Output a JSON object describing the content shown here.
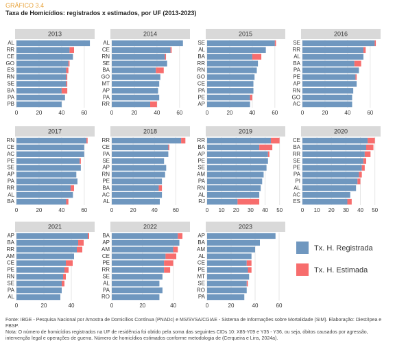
{
  "header": {
    "label": "GRÁFICO 3.4",
    "title": "Taxa de Homicídios: registrados x estimados, por UF (2013-2023)"
  },
  "chart_data": [
    {
      "type": "bar",
      "title": "2013",
      "categories": [
        "AL",
        "RR",
        "CE",
        "GO",
        "ES",
        "RN",
        "SE",
        "BA",
        "PA",
        "PB"
      ],
      "series": [
        {
          "name": "Tx. H. Registrada",
          "color": "#6f97bf",
          "values": [
            65,
            47,
            50,
            46,
            44,
            44,
            44,
            40,
            43,
            40
          ]
        },
        {
          "name": "Tx. H. Estimada",
          "color": "#f76d6d",
          "values": [
            0,
            4,
            0,
            1,
            2,
            1,
            1,
            5,
            0,
            0
          ]
        }
      ],
      "xlim": [
        0,
        68
      ],
      "xticks": [
        0,
        20,
        40,
        60
      ]
    },
    {
      "type": "bar",
      "title": "2014",
      "categories": [
        "AL",
        "CE",
        "RN",
        "SE",
        "BA",
        "GO",
        "MT",
        "AP",
        "PA",
        "RR"
      ],
      "series": [
        {
          "name": "Tx. H. Registrada",
          "color": "#6f97bf",
          "values": [
            63,
            52,
            47,
            49,
            39,
            43,
            42,
            41,
            42,
            34
          ]
        },
        {
          "name": "Tx. H. Estimada",
          "color": "#f76d6d",
          "values": [
            0,
            1,
            1,
            0,
            7,
            0,
            0,
            0,
            0,
            6
          ]
        }
      ],
      "xlim": [
        0,
        68
      ],
      "xticks": [
        0,
        20,
        40,
        60
      ]
    },
    {
      "type": "bar",
      "title": "2015",
      "categories": [
        "SE",
        "AL",
        "BA",
        "RR",
        "RN",
        "GO",
        "CE",
        "PA",
        "PE",
        "AP"
      ],
      "series": [
        {
          "name": "Tx. H. Registrada",
          "color": "#6f97bf",
          "values": [
            60,
            52,
            40,
            45,
            44,
            42,
            41,
            41,
            38,
            38
          ]
        },
        {
          "name": "Tx. H. Estimada",
          "color": "#f76d6d",
          "values": [
            1,
            0,
            8,
            0,
            0,
            0,
            0,
            0,
            2,
            0
          ]
        }
      ],
      "xlim": [
        0,
        68
      ],
      "xticks": [
        0,
        20,
        40,
        60
      ]
    },
    {
      "type": "bar",
      "title": "2016",
      "categories": [
        "SE",
        "RR",
        "AL",
        "BA",
        "PA",
        "PE",
        "AP",
        "RN",
        "GO",
        "AC"
      ],
      "series": [
        {
          "name": "Tx. H. Registrada",
          "color": "#6f97bf",
          "values": [
            64,
            54,
            54,
            46,
            50,
            47,
            48,
            45,
            44,
            44
          ]
        },
        {
          "name": "Tx. H. Estimada",
          "color": "#f76d6d",
          "values": [
            1,
            2,
            0,
            6,
            0,
            1,
            0,
            0,
            0,
            0
          ]
        }
      ],
      "xlim": [
        0,
        68
      ],
      "xticks": [
        0,
        20,
        40,
        60
      ]
    },
    {
      "type": "bar",
      "title": "2017",
      "categories": [
        "RN",
        "CE",
        "AC",
        "PE",
        "SE",
        "AP",
        "PA",
        "RR",
        "AL",
        "BA"
      ],
      "series": [
        {
          "name": "Tx. H. Registrada",
          "color": "#6f97bf",
          "values": [
            62,
            60,
            60,
            56,
            57,
            53,
            54,
            48,
            50,
            44
          ]
        },
        {
          "name": "Tx. H. Estimada",
          "color": "#f76d6d",
          "values": [
            1,
            0,
            0,
            1,
            0,
            0,
            0,
            3,
            0,
            2
          ]
        }
      ],
      "xlim": [
        0,
        68
      ],
      "xticks": [
        0,
        20,
        40,
        60
      ]
    },
    {
      "type": "bar",
      "title": "2018",
      "categories": [
        "RR",
        "CE",
        "PA",
        "SE",
        "AP",
        "RN",
        "PE",
        "BA",
        "AC",
        "AL"
      ],
      "series": [
        {
          "name": "Tx. H. Registrada",
          "color": "#6f97bf",
          "values": [
            65,
            53,
            53,
            49,
            51,
            50,
            47,
            44,
            47,
            45
          ]
        },
        {
          "name": "Tx. H. Estimada",
          "color": "#f76d6d",
          "values": [
            4,
            1,
            0,
            0,
            0,
            0,
            0,
            3,
            0,
            0
          ]
        }
      ],
      "xlim": [
        0,
        72
      ],
      "xticks": [
        0,
        20,
        40,
        60
      ]
    },
    {
      "type": "bar",
      "title": "2019",
      "categories": [
        "RR",
        "BA",
        "AP",
        "PE",
        "SE",
        "AM",
        "PA",
        "RN",
        "AL",
        "RJ"
      ],
      "series": [
        {
          "name": "Tx. H. Registrada",
          "color": "#6f97bf",
          "values": [
            44,
            36,
            42,
            42,
            41,
            39,
            38,
            37,
            36,
            21
          ]
        },
        {
          "name": "Tx. H. Estimada",
          "color": "#f76d6d",
          "values": [
            6,
            9,
            1,
            0,
            0,
            0,
            0,
            0,
            0,
            15
          ]
        }
      ],
      "xlim": [
        0,
        53
      ],
      "xticks": [
        0,
        10,
        20,
        30,
        40,
        50
      ]
    },
    {
      "type": "bar",
      "title": "2020",
      "categories": [
        "CE",
        "BA",
        "RR",
        "SE",
        "PE",
        "PA",
        "PI",
        "AL",
        "AC",
        "ES"
      ],
      "series": [
        {
          "name": "Tx. H. Registrada",
          "color": "#6f97bf",
          "values": [
            45,
            44,
            43,
            42,
            41,
            39,
            38,
            37,
            33,
            31
          ]
        },
        {
          "name": "Tx. H. Estimada",
          "color": "#f76d6d",
          "values": [
            5,
            5,
            4,
            2,
            2,
            2,
            2,
            0,
            0,
            3
          ]
        }
      ],
      "xlim": [
        0,
        53
      ],
      "xticks": [
        0,
        10,
        20,
        30,
        40,
        50
      ]
    },
    {
      "type": "bar",
      "title": "2021",
      "categories": [
        "AP",
        "BA",
        "RR",
        "AM",
        "CE",
        "PE",
        "RN",
        "SE",
        "PA",
        "AL"
      ],
      "series": [
        {
          "name": "Tx. H. Registrada",
          "color": "#6f97bf",
          "values": [
            52,
            45,
            44,
            42,
            36,
            35,
            34,
            33,
            33,
            32
          ]
        },
        {
          "name": "Tx. H. Estimada",
          "color": "#f76d6d",
          "values": [
            1,
            4,
            4,
            0,
            5,
            3,
            2,
            2,
            0,
            0
          ]
        }
      ],
      "xlim": [
        0,
        56
      ],
      "xticks": [
        0,
        20,
        40
      ]
    },
    {
      "type": "bar",
      "title": "2022",
      "categories": [
        "BA",
        "AP",
        "AM",
        "CE",
        "PE",
        "RR",
        "SE",
        "AL",
        "PA",
        "RO"
      ],
      "series": [
        {
          "name": "Tx. H. Registrada",
          "color": "#6f97bf",
          "values": [
            43,
            44,
            40,
            35,
            34,
            34,
            33,
            31,
            33,
            31
          ]
        },
        {
          "name": "Tx. H. Estimada",
          "color": "#f76d6d",
          "values": [
            3,
            0,
            3,
            7,
            6,
            4,
            0,
            0,
            0,
            0
          ]
        }
      ],
      "xlim": [
        0,
        50
      ],
      "xticks": [
        0,
        20,
        40
      ]
    },
    {
      "type": "bar",
      "title": "2023",
      "categories": [
        "AP",
        "BA",
        "AM",
        "AL",
        "CE",
        "PE",
        "MT",
        "SE",
        "RO",
        "PA"
      ],
      "series": [
        {
          "name": "Tx. H. Registrada",
          "color": "#6f97bf",
          "values": [
            57,
            44,
            40,
            37,
            33,
            34,
            35,
            33,
            33,
            31
          ]
        },
        {
          "name": "Tx. H. Estimada",
          "color": "#f76d6d",
          "values": [
            0,
            0,
            0,
            0,
            4,
            3,
            0,
            1,
            0,
            0
          ]
        }
      ],
      "xlim": [
        0,
        64
      ],
      "xticks": [
        0,
        20,
        40,
        60
      ]
    }
  ],
  "footer": {
    "source": "Fonte: IBGE - Pesquisa Nacional por Amostra de Domicílios Contínua (PNADc) e MS/SVSA/CGIAE - Sistema de Informações sobre Mortalidade (SIM). Elaboração: Diest/Ipea e FBSP.",
    "note": "Nota: O número de homicídios registrados na UF de residência foi obtido pela soma das seguintes CIDs 10: X85-Y09 e Y35 - Y36, ou seja, óbitos causados por agressão, intervenção legal e operações de guerra. Número de homicídios estimados conforme metodologia de (Cerqueira e Lins, 2024a)."
  }
}
